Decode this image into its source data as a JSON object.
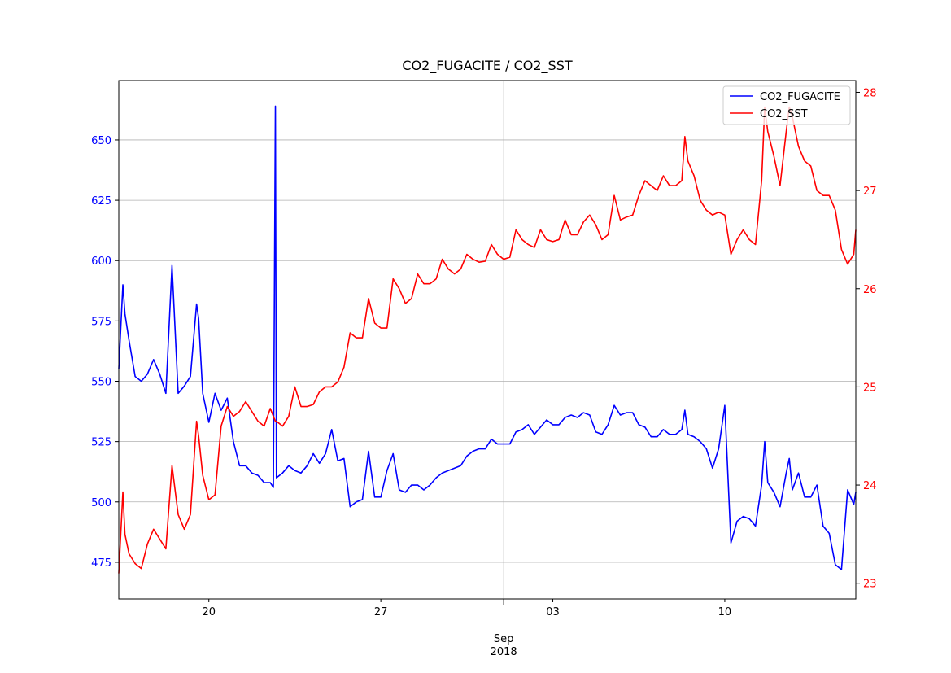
{
  "chart_data": {
    "type": "line",
    "title": "CO2_FUGACITE / CO2_SST",
    "x": [
      "2018-08-16T08:00",
      "2018-08-16T12:00",
      "2018-08-16T14:00",
      "2018-08-16T18:00",
      "2018-08-17T00:00",
      "2018-08-17T06:00",
      "2018-08-17T12:00",
      "2018-08-17T18:00",
      "2018-08-18T00:00",
      "2018-08-18T06:00",
      "2018-08-18T12:00",
      "2018-08-18T18:00",
      "2018-08-19T00:00",
      "2018-08-19T06:00",
      "2018-08-19T12:00",
      "2018-08-19T14:00",
      "2018-08-19T18:00",
      "2018-08-20T00:00",
      "2018-08-20T06:00",
      "2018-08-20T12:00",
      "2018-08-20T18:00",
      "2018-08-21T00:00",
      "2018-08-21T06:00",
      "2018-08-21T12:00",
      "2018-08-21T18:00",
      "2018-08-22T00:00",
      "2018-08-22T06:00",
      "2018-08-22T12:00",
      "2018-08-22T15:00",
      "2018-08-22T17:00",
      "2018-08-22T18:00",
      "2018-08-23T00:00",
      "2018-08-23T06:00",
      "2018-08-23T12:00",
      "2018-08-23T18:00",
      "2018-08-24T00:00",
      "2018-08-24T06:00",
      "2018-08-24T12:00",
      "2018-08-24T18:00",
      "2018-08-25T00:00",
      "2018-08-25T06:00",
      "2018-08-25T12:00",
      "2018-08-25T18:00",
      "2018-08-26T00:00",
      "2018-08-26T06:00",
      "2018-08-26T12:00",
      "2018-08-26T18:00",
      "2018-08-27T00:00",
      "2018-08-27T06:00",
      "2018-08-27T12:00",
      "2018-08-27T18:00",
      "2018-08-28T00:00",
      "2018-08-28T06:00",
      "2018-08-28T12:00",
      "2018-08-28T18:00",
      "2018-08-29T00:00",
      "2018-08-29T06:00",
      "2018-08-29T12:00",
      "2018-08-29T18:00",
      "2018-08-30T00:00",
      "2018-08-30T06:00",
      "2018-08-30T12:00",
      "2018-08-30T18:00",
      "2018-08-31T00:00",
      "2018-08-31T06:00",
      "2018-08-31T12:00",
      "2018-08-31T18:00",
      "2018-09-01T00:00",
      "2018-09-01T06:00",
      "2018-09-01T12:00",
      "2018-09-01T18:00",
      "2018-09-02T00:00",
      "2018-09-02T06:00",
      "2018-09-02T12:00",
      "2018-09-02T18:00",
      "2018-09-03T00:00",
      "2018-09-03T06:00",
      "2018-09-03T12:00",
      "2018-09-03T18:00",
      "2018-09-04T00:00",
      "2018-09-04T06:00",
      "2018-09-04T12:00",
      "2018-09-04T18:00",
      "2018-09-05T00:00",
      "2018-09-05T06:00",
      "2018-09-05T12:00",
      "2018-09-05T18:00",
      "2018-09-06T00:00",
      "2018-09-06T06:00",
      "2018-09-06T12:00",
      "2018-09-06T18:00",
      "2018-09-07T00:00",
      "2018-09-07T06:00",
      "2018-09-07T12:00",
      "2018-09-07T18:00",
      "2018-09-08T00:00",
      "2018-09-08T06:00",
      "2018-09-08T09:00",
      "2018-09-08T12:00",
      "2018-09-08T18:00",
      "2018-09-09T00:00",
      "2018-09-09T06:00",
      "2018-09-09T12:00",
      "2018-09-09T18:00",
      "2018-09-10T00:00",
      "2018-09-10T06:00",
      "2018-09-10T12:00",
      "2018-09-10T18:00",
      "2018-09-11T00:00",
      "2018-09-11T06:00",
      "2018-09-11T12:00",
      "2018-09-11T15:00",
      "2018-09-11T18:00",
      "2018-09-12T00:00",
      "2018-09-12T06:00",
      "2018-09-12T12:00",
      "2018-09-12T15:00",
      "2018-09-12T18:00",
      "2018-09-13T00:00",
      "2018-09-13T06:00",
      "2018-09-13T12:00",
      "2018-09-13T18:00",
      "2018-09-14T00:00",
      "2018-09-14T06:00",
      "2018-09-14T12:00",
      "2018-09-14T18:00",
      "2018-09-15T00:00",
      "2018-09-15T06:00",
      "2018-09-15T08:00"
    ],
    "series": [
      {
        "name": "CO2_FUGACITE",
        "color": "#0000ff",
        "values": [
          555,
          590,
          578,
          567,
          552,
          550,
          553,
          559,
          553,
          545,
          598,
          545,
          548,
          552,
          582,
          576,
          545,
          533,
          545,
          538,
          543,
          525,
          515,
          515,
          512,
          511,
          508,
          508,
          506,
          664,
          510,
          512,
          515,
          513,
          512,
          515,
          520,
          516,
          520,
          530,
          517,
          518,
          498,
          500,
          501,
          521,
          502,
          502,
          513,
          520,
          505,
          504,
          507,
          507,
          505,
          507,
          510,
          512,
          513,
          514,
          515,
          519,
          521,
          522,
          522,
          526,
          524,
          524,
          524,
          529,
          530,
          532,
          528,
          531,
          534,
          532,
          532,
          535,
          536,
          535,
          537,
          536,
          529,
          528,
          532,
          540,
          536,
          537,
          537,
          532,
          531,
          527,
          527,
          530,
          528,
          528,
          530,
          538,
          528,
          527,
          525,
          522,
          514,
          522,
          540,
          483,
          492,
          494,
          493,
          490,
          507,
          525,
          508,
          504,
          498,
          512,
          518,
          505,
          512,
          502,
          502,
          507,
          490,
          487,
          474,
          472,
          505,
          499,
          504
        ]
      },
      {
        "name": "CO2_SST",
        "color": "#ff0000",
        "axis": "y2",
        "values": [
          23.1,
          23.93,
          23.5,
          23.3,
          23.2,
          23.15,
          23.4,
          23.55,
          23.45,
          23.35,
          24.2,
          23.7,
          23.55,
          23.7,
          24.65,
          24.5,
          24.1,
          23.85,
          23.9,
          24.6,
          24.8,
          24.7,
          24.75,
          24.85,
          24.75,
          24.65,
          24.6,
          24.78,
          24.7,
          24.65,
          24.65,
          24.6,
          24.7,
          25.0,
          24.8,
          24.8,
          24.82,
          24.95,
          25.0,
          25.0,
          25.05,
          25.2,
          25.55,
          25.5,
          25.5,
          25.9,
          25.65,
          25.6,
          25.6,
          26.1,
          26.0,
          25.85,
          25.9,
          26.15,
          26.05,
          26.05,
          26.1,
          26.3,
          26.2,
          26.15,
          26.2,
          26.35,
          26.3,
          26.27,
          26.28,
          26.45,
          26.35,
          26.3,
          26.32,
          26.6,
          26.5,
          26.45,
          26.42,
          26.6,
          26.5,
          26.48,
          26.5,
          26.7,
          26.55,
          26.55,
          26.68,
          26.75,
          26.65,
          26.5,
          26.55,
          26.95,
          26.7,
          26.73,
          26.75,
          26.95,
          27.1,
          27.05,
          27.0,
          27.15,
          27.05,
          27.05,
          27.1,
          27.55,
          27.3,
          27.15,
          26.9,
          26.8,
          26.75,
          26.78,
          26.75,
          26.35,
          26.5,
          26.6,
          26.5,
          26.45,
          27.1,
          27.85,
          27.6,
          27.35,
          27.05,
          27.6,
          27.85,
          27.75,
          27.45,
          27.3,
          27.25,
          27.0,
          26.95,
          26.95,
          26.8,
          26.4,
          26.25,
          26.35,
          26.6
        ]
      }
    ],
    "xlim": [
      "2018-08-16T08:00",
      "2018-09-15T08:00"
    ],
    "xticks": [
      {
        "value": "2018-08-20",
        "label": "20"
      },
      {
        "value": "2018-08-27",
        "label": "27"
      },
      {
        "value": "2018-09-03",
        "label": "03"
      },
      {
        "value": "2018-09-10",
        "label": "10"
      }
    ],
    "xticks_major": [
      {
        "value": "2018-09-01",
        "label": "Sep",
        "sublabel": "2018"
      }
    ],
    "ylim": [
      459.8,
      674.6
    ],
    "yticks": [
      475,
      500,
      525,
      550,
      575,
      600,
      625,
      650
    ],
    "y2lim": [
      22.84,
      28.12
    ],
    "y2ticks": [
      23,
      24,
      25,
      26,
      27,
      28
    ],
    "grid": true,
    "legend": "upper right"
  }
}
